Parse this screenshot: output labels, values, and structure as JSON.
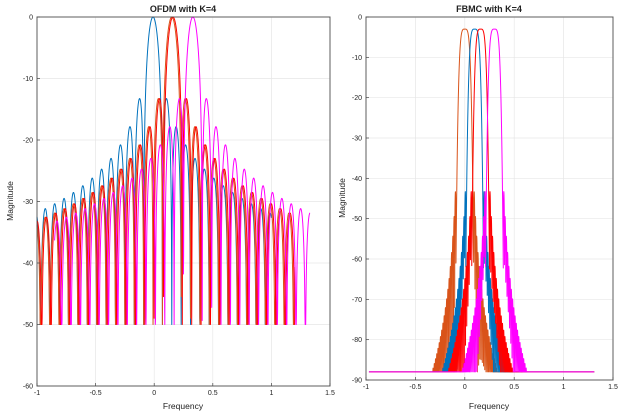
{
  "chart_data": [
    {
      "type": "line",
      "title": "OFDM with K=4",
      "xlabel": "Frequency",
      "ylabel": "Magnitude",
      "xlim": [
        -1,
        1.5
      ],
      "ylim": [
        -60,
        0
      ],
      "xticks": [
        -1,
        -0.5,
        0,
        0.5,
        1,
        1.5
      ],
      "xtick_labels": [
        "-1",
        "-0.5",
        "0",
        "0.5",
        "1",
        "1.5"
      ],
      "yticks": [
        -60,
        -50,
        -40,
        -30,
        -20,
        -10,
        0
      ],
      "ytick_labels": [
        "-60",
        "-50",
        "-40",
        "-30",
        "-20",
        "-10",
        "0"
      ],
      "grid": true,
      "description_kind": "sinc spectra of 4 subcarriers, magnitude in dB, floor clipped at -50",
      "series": [
        {
          "center": -0.01,
          "color": "#0072BD",
          "support": [
            -1,
            1.0
          ],
          "values_at_center": 0
        },
        {
          "center": 0.15,
          "color": "#D95319",
          "support": [
            -1,
            1.2
          ],
          "values_at_center": 0
        },
        {
          "center": 0.16,
          "color": "#FF0000",
          "support": [
            -1,
            1.2
          ],
          "values_at_center": 0
        },
        {
          "center": 0.33,
          "color": "#FF00FF",
          "support": [
            -0.85,
            1.33
          ],
          "values_at_center": 0
        }
      ],
      "spacing": 0.08,
      "floor": -50,
      "sidelobe_ref": -13.3
    },
    {
      "type": "line",
      "title": "FBMC with K=4",
      "xlabel": "Frequency",
      "ylabel": "Magnitude",
      "xlim": [
        -1,
        1.5
      ],
      "ylim": [
        -90,
        0
      ],
      "xticks": [
        -1,
        -0.5,
        0,
        0.5,
        1,
        1.5
      ],
      "xtick_labels": [
        "-1",
        "-0.5",
        "0",
        "0.5",
        "1",
        "1.5"
      ],
      "yticks": [
        -90,
        -80,
        -70,
        -60,
        -50,
        -40,
        -30,
        -20,
        -10,
        0
      ],
      "ytick_labels": [
        "-90",
        "-80",
        "-70",
        "-60",
        "-50",
        "-40",
        "-30",
        "-20",
        "-10",
        "0"
      ],
      "grid": true,
      "description_kind": "filtered subcarrier spectra with rapidly decaying sidelobes, floor near -88",
      "series": [
        {
          "center": 0.0,
          "color": "#D95319"
        },
        {
          "center": 0.1,
          "color": "#0072BD"
        },
        {
          "center": 0.16,
          "color": "#FF0000"
        },
        {
          "center": 0.3,
          "color": "#FF00FF"
        }
      ],
      "mainlobe_halfwidth": 0.09,
      "floor": -88
    }
  ]
}
